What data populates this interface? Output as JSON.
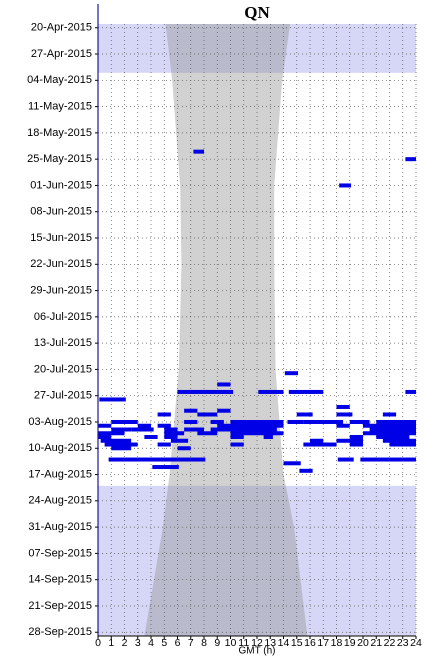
{
  "chart_data": {
    "type": "detection-timeline",
    "title": "QN",
    "xlabel": "GMT (h)",
    "xlim": [
      0,
      24
    ],
    "xticks": [
      0,
      1,
      2,
      3,
      4,
      5,
      6,
      7,
      8,
      9,
      10,
      11,
      12,
      13,
      14,
      15,
      16,
      17,
      18,
      19,
      20,
      21,
      22,
      23,
      24
    ],
    "ylim": [
      "19-Apr-2015",
      "29-Sep-2015"
    ],
    "yticks": [
      "20-Apr-2015",
      "27-Apr-2015",
      "04-May-2015",
      "11-May-2015",
      "18-May-2015",
      "25-May-2015",
      "01-Jun-2015",
      "08-Jun-2015",
      "15-Jun-2015",
      "22-Jun-2015",
      "29-Jun-2015",
      "06-Jul-2015",
      "13-Jul-2015",
      "20-Jul-2015",
      "27-Jul-2015",
      "03-Aug-2015",
      "10-Aug-2015",
      "17-Aug-2015",
      "24-Aug-2015",
      "31-Aug-2015",
      "07-Sep-2015",
      "14-Sep-2015",
      "21-Sep-2015",
      "28-Sep-2015"
    ],
    "grid": true,
    "no_effort": {
      "color": "#c8c8f4",
      "periods": [
        [
          "19-Apr-2015",
          "02-May-2015"
        ],
        [
          "20-Aug-2015",
          "29-Sep-2015"
        ]
      ]
    },
    "night": {
      "color": "#9a9a9a",
      "dates": [
        "19-Apr-2015",
        "04-May-2015",
        "01-Jun-2015",
        "22-Jun-2015",
        "20-Jul-2015",
        "17-Aug-2015",
        "31-Aug-2015",
        "29-Sep-2015"
      ],
      "start": [
        5.1,
        5.6,
        6.2,
        6.3,
        6.1,
        5.4,
        4.9,
        3.5
      ],
      "end": [
        14.5,
        13.9,
        13.3,
        13.3,
        13.4,
        14.0,
        14.8,
        15.8
      ]
    },
    "detections": {
      "color": "#0000e6",
      "dates": [
        "23-May-2015",
        "25-May-2015",
        "01-Jun-2015",
        "21-Jul-2015",
        "24-Jul-2015",
        "26-Jul-2015",
        "26-Jul-2015",
        "26-Jul-2015",
        "26-Jul-2015",
        "28-Jul-2015",
        "30-Jul-2015",
        "31-Jul-2015",
        "31-Jul-2015",
        "01-Aug-2015",
        "01-Aug-2015",
        "01-Aug-2015",
        "01-Aug-2015",
        "01-Aug-2015",
        "03-Aug-2015",
        "03-Aug-2015",
        "03-Aug-2015",
        "03-Aug-2015",
        "03-Aug-2015",
        "03-Aug-2015",
        "03-Aug-2015",
        "03-Aug-2015",
        "04-Aug-2015",
        "04-Aug-2015",
        "04-Aug-2015",
        "04-Aug-2015",
        "04-Aug-2015",
        "04-Aug-2015",
        "05-Aug-2015",
        "05-Aug-2015",
        "05-Aug-2015",
        "05-Aug-2015",
        "05-Aug-2015",
        "05-Aug-2015",
        "06-Aug-2015",
        "06-Aug-2015",
        "06-Aug-2015",
        "06-Aug-2015",
        "06-Aug-2015",
        "07-Aug-2015",
        "07-Aug-2015",
        "07-Aug-2015",
        "07-Aug-2015",
        "07-Aug-2015",
        "07-Aug-2015",
        "07-Aug-2015",
        "08-Aug-2015",
        "08-Aug-2015",
        "08-Aug-2015",
        "08-Aug-2015",
        "08-Aug-2015",
        "09-Aug-2015",
        "09-Aug-2015",
        "09-Aug-2015",
        "09-Aug-2015",
        "09-Aug-2015",
        "09-Aug-2015",
        "10-Aug-2015",
        "10-Aug-2015",
        "13-Aug-2015",
        "13-Aug-2015",
        "13-Aug-2015",
        "14-Aug-2015",
        "15-Aug-2015",
        "16-Aug-2015"
      ],
      "start": [
        7.2,
        23.2,
        18.2,
        14.1,
        9.0,
        6.0,
        12.1,
        14.4,
        23.2,
        0.1,
        18.0,
        6.5,
        9.0,
        4.5,
        7.5,
        15.0,
        18.0,
        21.5,
        1.0,
        6.5,
        8.5,
        10.0,
        14.3,
        15.5,
        19.0,
        21.0,
        0.0,
        3.0,
        4.5,
        9.0,
        18.0,
        20.0,
        1.0,
        2.5,
        5.0,
        6.5,
        8.5,
        20.5,
        0.0,
        5.0,
        7.5,
        10.0,
        20.0,
        0.0,
        3.5,
        5.0,
        10.0,
        12.5,
        19.0,
        21.0,
        0.2,
        5.5,
        16.0,
        18.0,
        21.5,
        0.5,
        4.5,
        10.0,
        15.5,
        19.0,
        22.0,
        1.0,
        6.0,
        0.8,
        18.1,
        19.8,
        14.0,
        4.1,
        15.2
      ],
      "end": [
        8.0,
        24.0,
        19.1,
        15.1,
        10.0,
        10.2,
        14.0,
        17.0,
        24.0,
        2.1,
        19.0,
        7.5,
        10.0,
        5.5,
        9.0,
        16.2,
        19.2,
        22.5,
        3.0,
        7.5,
        9.5,
        14.0,
        15.5,
        18.5,
        20.5,
        24.0,
        1.0,
        4.0,
        5.5,
        14.0,
        19.0,
        24.0,
        2.5,
        4.2,
        6.0,
        8.0,
        13.5,
        24.0,
        2.0,
        6.5,
        9.0,
        14.0,
        24.0,
        1.0,
        4.5,
        6.0,
        11.0,
        13.2,
        20.0,
        23.5,
        2.5,
        6.8,
        17.0,
        20.0,
        24.0,
        3.0,
        5.5,
        11.0,
        18.0,
        20.0,
        24.0,
        2.5,
        7.0,
        8.1,
        19.3,
        24.0,
        15.3,
        6.1,
        16.2
      ]
    }
  }
}
